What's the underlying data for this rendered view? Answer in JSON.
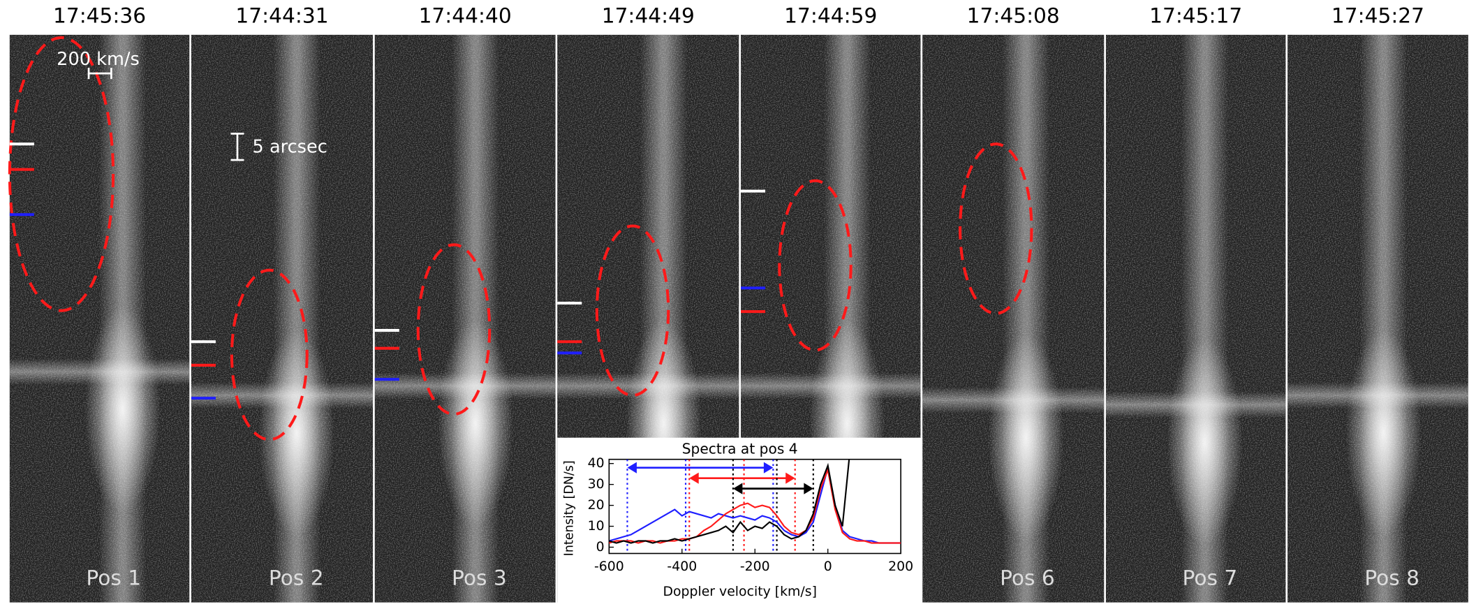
{
  "panels": [
    {
      "time": "17:45:36",
      "label": "Pos 1"
    },
    {
      "time": "17:44:31",
      "label": "Pos 2"
    },
    {
      "time": "17:44:40",
      "label": "Pos 3"
    },
    {
      "time": "17:44:49"
    },
    {
      "time": "17:44:59"
    },
    {
      "time": "17:45:08",
      "label": "Pos 6"
    },
    {
      "time": "17:45:17",
      "label": "Pos 7"
    },
    {
      "time": "17:45:27",
      "label": "Pos 8"
    }
  ],
  "annotations": {
    "velocity_scale": "200 km/s",
    "spatial_scale": "5 arcsec"
  },
  "chart_data": {
    "type": "line",
    "title": "Spectra at pos 4",
    "x_label": "Doppler velocity [km/s]",
    "y_label": "Intensity [DN/s]",
    "xlim": [
      -600,
      200
    ],
    "ylim": [
      -3,
      42
    ],
    "xticks": [
      -600,
      -400,
      -200,
      0,
      200
    ],
    "yticks": [
      0,
      10,
      20,
      30,
      40
    ],
    "x": [
      -600,
      -580,
      -560,
      -540,
      -520,
      -500,
      -480,
      -460,
      -440,
      -420,
      -400,
      -380,
      -360,
      -340,
      -320,
      -300,
      -280,
      -260,
      -240,
      -220,
      -200,
      -180,
      -160,
      -140,
      -120,
      -100,
      -80,
      -60,
      -40,
      -20,
      0,
      20,
      40,
      60,
      80,
      100,
      120,
      140,
      160,
      180,
      200
    ],
    "series": [
      {
        "name": "blue",
        "color": "#1f1fff",
        "values": [
          3,
          4,
          5,
          6,
          8,
          10,
          12,
          14,
          16,
          18,
          15,
          17,
          16,
          15,
          14,
          16,
          15,
          14,
          15,
          14,
          13,
          15,
          14,
          12,
          8,
          6,
          5,
          7,
          12,
          25,
          38,
          20,
          8,
          5,
          4,
          3,
          3,
          2,
          2,
          2,
          2
        ]
      },
      {
        "name": "red",
        "color": "#ff1a1a",
        "values": [
          2,
          3,
          3,
          3,
          2,
          3,
          3,
          2,
          3,
          3,
          4,
          4,
          5,
          8,
          10,
          13,
          16,
          18,
          20,
          21,
          19,
          20,
          19,
          15,
          10,
          7,
          6,
          8,
          14,
          28,
          37,
          18,
          7,
          4,
          3,
          3,
          2,
          2,
          2,
          2,
          2
        ]
      },
      {
        "name": "black",
        "color": "#000000",
        "values": [
          3,
          2,
          3,
          2,
          3,
          3,
          2,
          3,
          3,
          4,
          3,
          4,
          5,
          6,
          7,
          8,
          10,
          7,
          12,
          8,
          10,
          9,
          12,
          10,
          6,
          4,
          5,
          8,
          16,
          30,
          39,
          20,
          10,
          45,
          45,
          45,
          45,
          45,
          45,
          45,
          45
        ]
      }
    ],
    "ranges": [
      {
        "color": "#1f1fff",
        "from": -550,
        "mid": -390,
        "to": -150,
        "level": 38
      },
      {
        "color": "#ff1a1a",
        "from": -380,
        "mid": -230,
        "to": -90,
        "level": 33
      },
      {
        "color": "#000000",
        "from": -260,
        "mid": -140,
        "to": -40,
        "level": 28
      }
    ]
  }
}
